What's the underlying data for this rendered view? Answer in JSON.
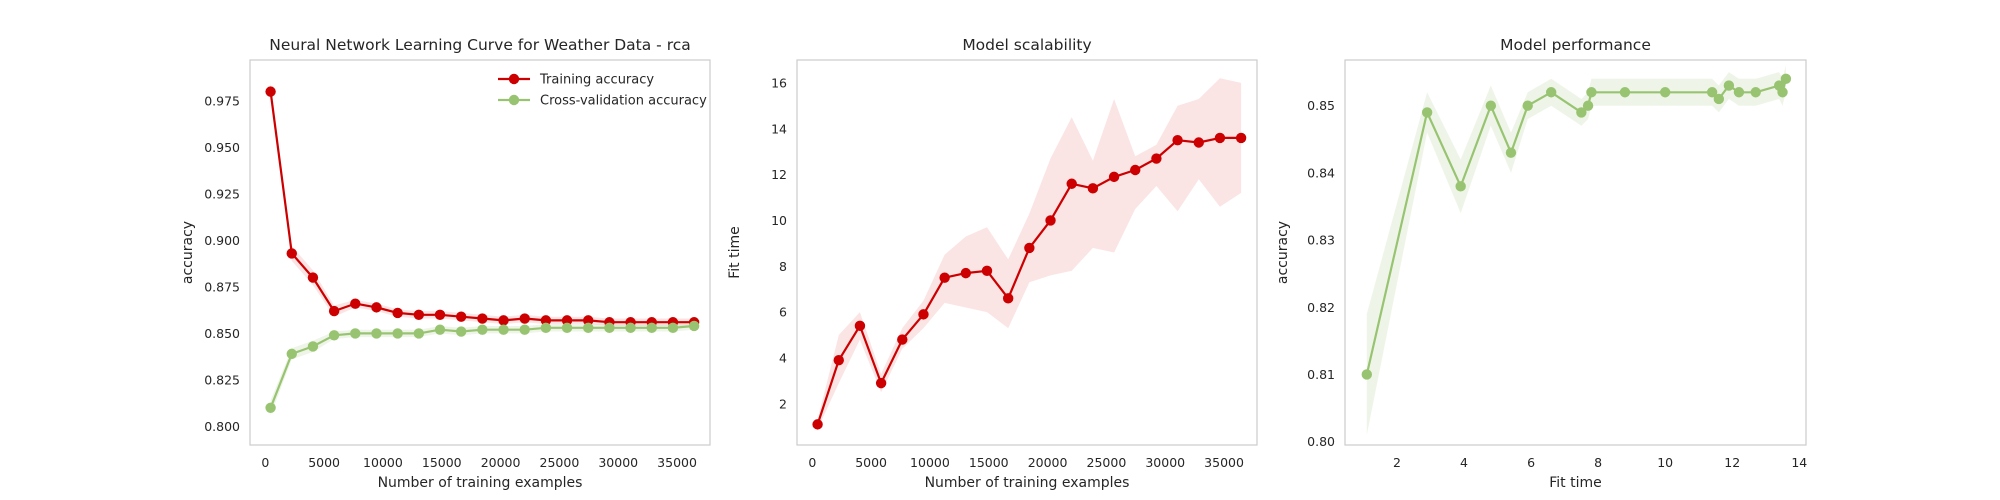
{
  "chart_data": [
    {
      "type": "line",
      "title": "Neural Network Learning Curve for Weather Data - rca",
      "xlabel": "Number of training examples",
      "ylabel": "accuracy",
      "xlim": [
        -1300,
        37800
      ],
      "ylim": [
        0.79,
        0.997
      ],
      "xticks": [
        0,
        5000,
        10000,
        15000,
        20000,
        25000,
        30000,
        35000
      ],
      "yticks": [
        0.8,
        0.825,
        0.85,
        0.875,
        0.9,
        0.925,
        0.95,
        0.975
      ],
      "grid": false,
      "legend": "top-right",
      "x": [
        450,
        2250,
        4050,
        5850,
        7650,
        9450,
        11250,
        13050,
        14850,
        16650,
        18450,
        20250,
        22050,
        23850,
        25650,
        27450,
        29250,
        31050,
        32850,
        34650,
        36450
      ],
      "series": [
        {
          "name": "Training accuracy",
          "color": "#cc0000",
          "values": [
            0.98,
            0.893,
            0.88,
            0.862,
            0.866,
            0.864,
            0.861,
            0.86,
            0.86,
            0.859,
            0.858,
            0.857,
            0.858,
            0.857,
            0.857,
            0.857,
            0.856,
            0.856,
            0.856,
            0.856,
            0.856
          ],
          "band": [
            0.005,
            0.004,
            0.004,
            0.003,
            0.002,
            0.002,
            0.002,
            0.002,
            0.002,
            0.002,
            0.002,
            0.002,
            0.002,
            0.002,
            0.002,
            0.002,
            0.002,
            0.002,
            0.002,
            0.002,
            0.002
          ]
        },
        {
          "name": "Cross-validation accuracy",
          "color": "#98c472",
          "values": [
            0.81,
            0.839,
            0.843,
            0.849,
            0.85,
            0.85,
            0.85,
            0.85,
            0.852,
            0.851,
            0.852,
            0.852,
            0.852,
            0.853,
            0.853,
            0.853,
            0.853,
            0.853,
            0.853,
            0.853,
            0.854
          ],
          "band": [
            0.004,
            0.003,
            0.003,
            0.002,
            0.002,
            0.002,
            0.002,
            0.002,
            0.002,
            0.002,
            0.002,
            0.002,
            0.002,
            0.002,
            0.002,
            0.002,
            0.002,
            0.002,
            0.002,
            0.002,
            0.002
          ]
        }
      ]
    },
    {
      "type": "line",
      "title": "Model scalability",
      "xlabel": "Number of training examples",
      "ylabel": "Fit time",
      "xlim": [
        -1300,
        37800
      ],
      "ylim": [
        0.2,
        17.0
      ],
      "xticks": [
        0,
        5000,
        10000,
        15000,
        20000,
        25000,
        30000,
        35000
      ],
      "yticks": [
        2,
        4,
        6,
        8,
        10,
        12,
        14,
        16
      ],
      "grid": false,
      "x": [
        450,
        2250,
        4050,
        5850,
        7650,
        9450,
        11250,
        13050,
        14850,
        16650,
        18450,
        20250,
        22050,
        23850,
        25650,
        27450,
        29250,
        31050,
        32850,
        34650,
        36450
      ],
      "series": [
        {
          "name": "",
          "color": "#cc0000",
          "values": [
            1.1,
            3.9,
            5.4,
            2.9,
            4.8,
            5.9,
            7.5,
            7.7,
            7.8,
            6.6,
            8.8,
            10.0,
            11.6,
            11.4,
            11.9,
            12.2,
            12.7,
            13.5,
            13.4,
            13.6,
            13.6
          ],
          "lower": [
            0.9,
            2.9,
            4.8,
            2.5,
            4.4,
            5.3,
            6.4,
            6.2,
            6.0,
            5.3,
            7.3,
            7.6,
            7.8,
            8.8,
            8.6,
            10.5,
            11.5,
            10.4,
            11.8,
            10.6,
            11.2
          ],
          "upper": [
            1.3,
            5.0,
            6.0,
            3.3,
            5.3,
            6.5,
            8.5,
            9.3,
            9.7,
            8.3,
            10.3,
            12.7,
            14.5,
            12.6,
            15.3,
            12.8,
            13.3,
            15.0,
            15.3,
            16.2,
            16.0
          ]
        }
      ]
    },
    {
      "type": "line",
      "title": "Model performance",
      "xlabel": "Fit time",
      "ylabel": "accuracy",
      "xlim": [
        0.45,
        14.2
      ],
      "ylim": [
        0.7995,
        0.8568
      ],
      "xticks": [
        2,
        4,
        6,
        8,
        10,
        12,
        14
      ],
      "yticks": [
        0.8,
        0.81,
        0.82,
        0.83,
        0.84,
        0.85
      ],
      "grid": false,
      "series": [
        {
          "name": "",
          "color": "#98c472",
          "x": [
            1.1,
            2.9,
            3.9,
            4.8,
            5.4,
            5.9,
            6.6,
            7.5,
            7.7,
            7.8,
            8.8,
            10.0,
            11.4,
            11.6,
            11.9,
            12.2,
            12.7,
            13.4,
            13.5,
            13.6
          ],
          "values": [
            0.81,
            0.849,
            0.838,
            0.85,
            0.843,
            0.85,
            0.852,
            0.849,
            0.85,
            0.852,
            0.852,
            0.852,
            0.852,
            0.851,
            0.853,
            0.852,
            0.852,
            0.853,
            0.852,
            0.854
          ],
          "band": [
            0.009,
            0.003,
            0.004,
            0.003,
            0.003,
            0.002,
            0.002,
            0.002,
            0.002,
            0.002,
            0.002,
            0.002,
            0.002,
            0.002,
            0.002,
            0.002,
            0.002,
            0.002,
            0.002,
            0.002
          ]
        }
      ]
    }
  ]
}
